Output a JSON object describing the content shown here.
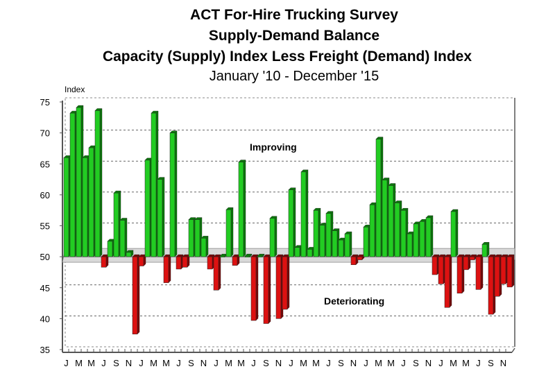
{
  "chart_data": {
    "type": "bar",
    "title": "ACT For-Hire Trucking Survey",
    "subtitle_lines": [
      "Supply-Demand Balance",
      "Capacity (Supply) Index Less Freight (Demand) Index"
    ],
    "date_range": "January '10 - December '15",
    "ylabel": "Index",
    "ylim": [
      35,
      75
    ],
    "baseline": 50,
    "yticks": [
      75,
      70,
      65,
      60,
      55,
      50,
      45,
      40,
      35
    ],
    "grid": true,
    "annotations": {
      "above": "Improving",
      "below": "Deteriorating"
    },
    "x_tick_labels": [
      "J",
      "M",
      "M",
      "J",
      "S",
      "N",
      "J",
      "M",
      "M",
      "J",
      "S",
      "N",
      "J",
      "M",
      "M",
      "J",
      "S",
      "N",
      "J",
      "M",
      "M",
      "J",
      "S",
      "N",
      "J",
      "M",
      "M",
      "J",
      "S",
      "N",
      "J",
      "M",
      "M",
      "J",
      "S",
      "N"
    ],
    "categories": [
      "Jan-10",
      "Feb-10",
      "Mar-10",
      "Apr-10",
      "May-10",
      "Jun-10",
      "Jul-10",
      "Aug-10",
      "Sep-10",
      "Oct-10",
      "Nov-10",
      "Dec-10",
      "Jan-11",
      "Feb-11",
      "Mar-11",
      "Apr-11",
      "May-11",
      "Jun-11",
      "Jul-11",
      "Aug-11",
      "Sep-11",
      "Oct-11",
      "Nov-11",
      "Dec-11",
      "Jan-12",
      "Feb-12",
      "Mar-12",
      "Apr-12",
      "May-12",
      "Jun-12",
      "Jul-12",
      "Aug-12",
      "Sep-12",
      "Oct-12",
      "Nov-12",
      "Dec-12",
      "Jan-13",
      "Feb-13",
      "Mar-13",
      "Apr-13",
      "May-13",
      "Jun-13",
      "Jul-13",
      "Aug-13",
      "Sep-13",
      "Oct-13",
      "Nov-13",
      "Dec-13",
      "Jan-14",
      "Feb-14",
      "Mar-14",
      "Apr-14",
      "May-14",
      "Jun-14",
      "Jul-14",
      "Aug-14",
      "Sep-14",
      "Oct-14",
      "Nov-14",
      "Dec-14",
      "Jan-15",
      "Feb-15",
      "Mar-15",
      "Apr-15",
      "May-15",
      "Jun-15",
      "Jul-15",
      "Aug-15",
      "Sep-15",
      "Oct-15",
      "Nov-15",
      "Dec-15"
    ],
    "values": [
      66.0,
      73.2,
      74.1,
      66.0,
      67.6,
      73.6,
      48.3,
      52.5,
      60.3,
      55.9,
      50.7,
      37.5,
      48.5,
      65.6,
      73.2,
      62.5,
      45.8,
      70.0,
      48.0,
      48.3,
      56.0,
      56.0,
      53.0,
      48.0,
      44.6,
      50.1,
      57.6,
      48.6,
      65.3,
      50.1,
      39.7,
      50.1,
      39.2,
      56.2,
      40.0,
      41.5,
      60.8,
      51.5,
      63.7,
      51.2,
      57.5,
      55.1,
      57.0,
      54.2,
      52.7,
      53.7,
      48.7,
      49.5,
      54.8,
      58.4,
      69.0,
      62.4,
      61.5,
      58.7,
      57.5,
      53.7,
      55.3,
      55.7,
      56.3,
      47.1,
      45.6,
      41.8,
      57.3,
      44.1,
      47.9,
      49.5,
      44.7,
      52.0,
      40.7,
      43.6,
      45.6,
      45.1
    ],
    "colors": {
      "positive": "#22cc22",
      "positive_dark": "#0a7a0a",
      "negative": "#dd1111",
      "negative_dark": "#7a0606",
      "band": "#d9d9d9"
    }
  }
}
